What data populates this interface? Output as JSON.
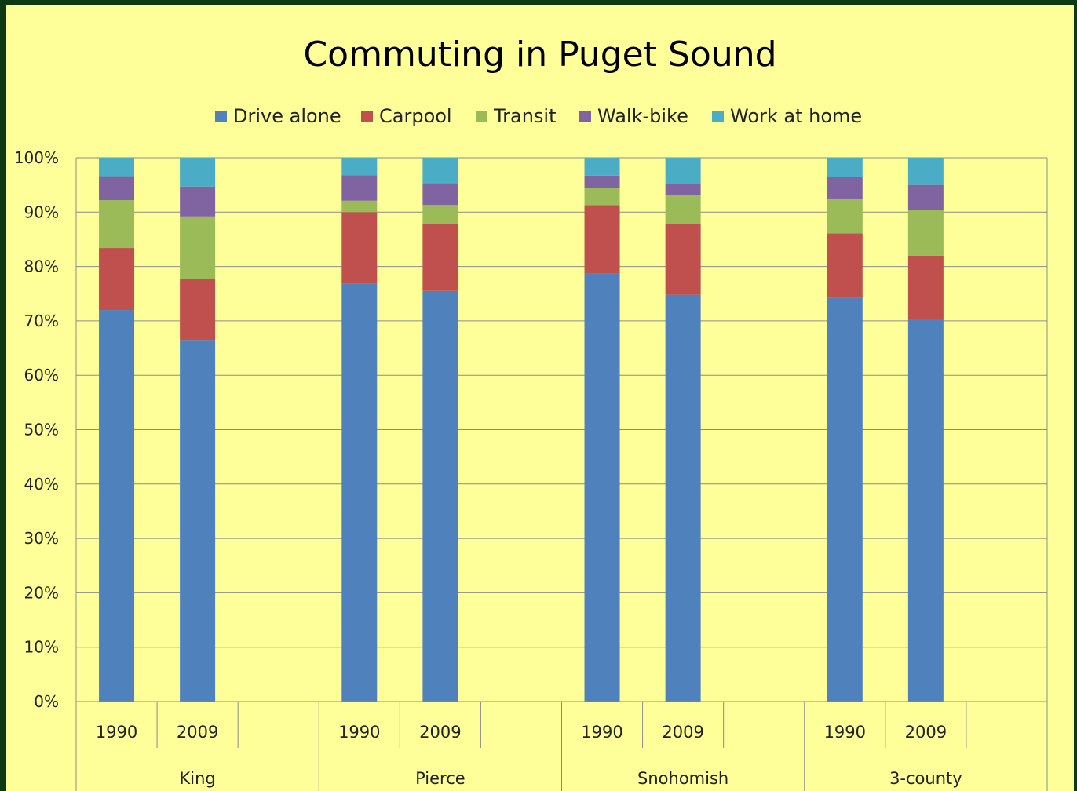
{
  "chart_data": {
    "type": "bar",
    "stacked": true,
    "title": "Commuting in Puget Sound",
    "legend_position": "top",
    "ylim": [
      0,
      100
    ],
    "y_tick_labels": [
      "0%",
      "10%",
      "20%",
      "30%",
      "40%",
      "50%",
      "60%",
      "70%",
      "80%",
      "90%",
      "100%"
    ],
    "groups": [
      "King",
      "Pierce",
      "Snohomish",
      "3-county"
    ],
    "years": [
      "1990",
      "2009"
    ],
    "categories": [
      "King 1990",
      "King 2009",
      "Pierce 1990",
      "Pierce 2009",
      "Snohomish 1990",
      "Snohomish 2009",
      "3-county 1990",
      "3-county 2009"
    ],
    "series": [
      {
        "name": "Drive alone",
        "color": "#4f81bd",
        "values": [
          72.0,
          66.5,
          76.8,
          75.5,
          78.7,
          74.8,
          74.2,
          70.3
        ]
      },
      {
        "name": "Carpool",
        "color": "#c0504d",
        "values": [
          11.4,
          11.2,
          13.2,
          12.3,
          12.6,
          13.0,
          11.9,
          11.7
        ]
      },
      {
        "name": "Transit",
        "color": "#9bbb59",
        "values": [
          8.8,
          11.5,
          2.1,
          3.5,
          3.1,
          5.3,
          6.4,
          8.4
        ]
      },
      {
        "name": "Walk-bike",
        "color": "#8064a2",
        "values": [
          4.4,
          5.5,
          4.7,
          4.0,
          2.3,
          2.0,
          4.0,
          4.6
        ]
      },
      {
        "name": "Work at home",
        "color": "#4bacc6",
        "values": [
          3.4,
          5.3,
          3.2,
          4.7,
          3.3,
          4.9,
          3.5,
          5.0
        ]
      }
    ],
    "grid": true
  }
}
